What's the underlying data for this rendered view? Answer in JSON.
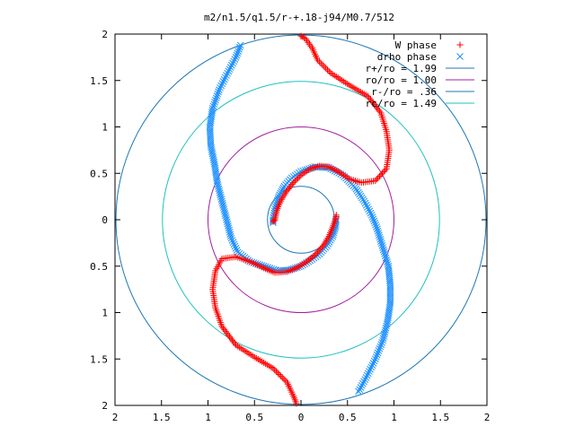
{
  "chart_data": {
    "type": "scatter",
    "title": "m2/n1.5/q1.5/r-+.18-j94/M0.7/512",
    "xlim": [
      -2,
      2
    ],
    "ylim": [
      -2,
      2
    ],
    "x_ticks": [
      {
        "value": -2,
        "label": "2"
      },
      {
        "value": -1.5,
        "label": "1.5"
      },
      {
        "value": -1,
        "label": "1"
      },
      {
        "value": -0.5,
        "label": "0.5"
      },
      {
        "value": 0,
        "label": "0"
      },
      {
        "value": 0.5,
        "label": "0.5"
      },
      {
        "value": 1,
        "label": "1"
      },
      {
        "value": 1.5,
        "label": "1.5"
      },
      {
        "value": 2,
        "label": "2"
      }
    ],
    "y_ticks": [
      {
        "value": 2,
        "label": "2"
      },
      {
        "value": 1.5,
        "label": "1.5"
      },
      {
        "value": 1,
        "label": "1"
      },
      {
        "value": 0.5,
        "label": "0.5"
      },
      {
        "value": 0,
        "label": "0"
      },
      {
        "value": -0.5,
        "label": "0.5"
      },
      {
        "value": -1,
        "label": "1"
      },
      {
        "value": -1.5,
        "label": "1.5"
      },
      {
        "value": -2,
        "label": "2"
      }
    ],
    "grid": false,
    "legend_position": "top-right",
    "series": [
      {
        "name": "W phase",
        "marker": "+",
        "color": "#ff0000",
        "arms": [
          [
            [
              0.0,
              1.98
            ],
            [
              0.05,
              1.95
            ],
            [
              0.12,
              1.85
            ],
            [
              0.18,
              1.72
            ],
            [
              0.32,
              1.58
            ],
            [
              0.52,
              1.45
            ],
            [
              0.72,
              1.33
            ],
            [
              0.86,
              1.15
            ],
            [
              0.92,
              0.95
            ],
            [
              0.95,
              0.75
            ],
            [
              0.92,
              0.55
            ],
            [
              0.8,
              0.42
            ],
            [
              0.65,
              0.4
            ],
            [
              0.52,
              0.44
            ],
            [
              0.4,
              0.52
            ],
            [
              0.3,
              0.57
            ],
            [
              0.2,
              0.58
            ],
            [
              0.1,
              0.55
            ],
            [
              0.0,
              0.48
            ],
            [
              -0.08,
              0.4
            ],
            [
              -0.16,
              0.3
            ],
            [
              -0.22,
              0.2
            ],
            [
              -0.26,
              0.1
            ],
            [
              -0.28,
              0.0
            ],
            [
              -0.3,
              -0.02
            ]
          ],
          [
            [
              -0.05,
              -1.98
            ],
            [
              -0.08,
              -1.9
            ],
            [
              -0.15,
              -1.75
            ],
            [
              -0.3,
              -1.6
            ],
            [
              -0.5,
              -1.48
            ],
            [
              -0.7,
              -1.35
            ],
            [
              -0.85,
              -1.15
            ],
            [
              -0.92,
              -0.95
            ],
            [
              -0.95,
              -0.75
            ],
            [
              -0.92,
              -0.55
            ],
            [
              -0.85,
              -0.42
            ],
            [
              -0.7,
              -0.4
            ],
            [
              -0.55,
              -0.45
            ],
            [
              -0.4,
              -0.52
            ],
            [
              -0.28,
              -0.57
            ],
            [
              -0.15,
              -0.56
            ],
            [
              -0.05,
              -0.52
            ],
            [
              0.05,
              -0.46
            ],
            [
              0.15,
              -0.38
            ],
            [
              0.24,
              -0.28
            ],
            [
              0.3,
              -0.18
            ],
            [
              0.34,
              -0.08
            ],
            [
              0.37,
              0.0
            ],
            [
              0.38,
              0.05
            ]
          ]
        ]
      },
      {
        "name": "drho phase",
        "marker": "x",
        "color": "#1e90ff",
        "arms": [
          [
            [
              -0.65,
              1.88
            ],
            [
              -0.7,
              1.75
            ],
            [
              -0.78,
              1.6
            ],
            [
              -0.88,
              1.4
            ],
            [
              -0.95,
              1.2
            ],
            [
              -0.98,
              1.0
            ],
            [
              -0.97,
              0.8
            ],
            [
              -0.93,
              0.6
            ],
            [
              -0.9,
              0.4
            ],
            [
              -0.85,
              0.2
            ],
            [
              -0.8,
              0.0
            ],
            [
              -0.75,
              -0.2
            ],
            [
              -0.68,
              -0.35
            ],
            [
              -0.55,
              -0.45
            ],
            [
              -0.4,
              -0.5
            ],
            [
              -0.25,
              -0.55
            ],
            [
              -0.12,
              -0.54
            ],
            [
              0.0,
              -0.5
            ],
            [
              0.1,
              -0.44
            ],
            [
              0.2,
              -0.37
            ],
            [
              0.28,
              -0.28
            ],
            [
              0.34,
              -0.18
            ],
            [
              0.37,
              -0.08
            ],
            [
              0.38,
              0.0
            ]
          ],
          [
            [
              0.62,
              -1.85
            ],
            [
              0.7,
              -1.7
            ],
            [
              0.8,
              -1.5
            ],
            [
              0.88,
              -1.3
            ],
            [
              0.93,
              -1.1
            ],
            [
              0.96,
              -0.9
            ],
            [
              0.96,
              -0.7
            ],
            [
              0.94,
              -0.5
            ],
            [
              0.88,
              -0.3
            ],
            [
              0.82,
              -0.1
            ],
            [
              0.76,
              0.05
            ],
            [
              0.68,
              0.2
            ],
            [
              0.58,
              0.35
            ],
            [
              0.45,
              0.48
            ],
            [
              0.3,
              0.56
            ],
            [
              0.15,
              0.57
            ],
            [
              0.0,
              0.52
            ],
            [
              -0.1,
              0.45
            ],
            [
              -0.18,
              0.36
            ],
            [
              -0.24,
              0.25
            ],
            [
              -0.28,
              0.12
            ],
            [
              -0.3,
              0.0
            ],
            [
              -0.3,
              -0.03
            ]
          ]
        ]
      }
    ],
    "circles": [
      {
        "name": "r+/ro = 1.99",
        "r": 1.99,
        "color": "#1f77b4"
      },
      {
        "name": "ro/ro = 1.00",
        "r": 1.0,
        "color": "#a020a0"
      },
      {
        "name": "r-/ro = .36",
        "r": 0.36,
        "color": "#1f77b4"
      },
      {
        "name": "rc/ro = 1.49",
        "r": 1.49,
        "color": "#20c0c0"
      }
    ]
  }
}
